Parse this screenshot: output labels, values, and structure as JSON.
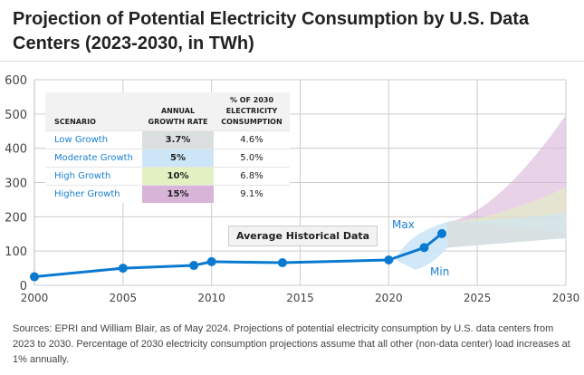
{
  "chart_data": {
    "type": "line",
    "title": "Projection of Potential Electricity Consumption by U.S. Data Centers (2023-2030, in TWh)",
    "xlim": [
      2000,
      2030
    ],
    "ylim": [
      0,
      600
    ],
    "xticks": [
      2000,
      2005,
      2010,
      2015,
      2020,
      2025,
      2030
    ],
    "yticks": [
      0,
      100,
      200,
      300,
      400,
      500,
      600
    ],
    "grid": true,
    "historical": {
      "label": "Average Historical Data",
      "color": "#0a7ad1",
      "x": [
        2000,
        2005,
        2009,
        2010,
        2014,
        2020,
        2022,
        2023
      ],
      "y": [
        25,
        50,
        58,
        69,
        66,
        74,
        110,
        151
      ]
    },
    "range_labels": {
      "max": "Max",
      "min": "Min"
    },
    "projections": {
      "start_year": 2023.3,
      "start_min": 110,
      "start_max": 185,
      "end_min_2030": 138,
      "scenarios": [
        {
          "name": "Higher Growth",
          "growth": "15%",
          "share_2030": "9.1%",
          "top_2030": 497,
          "color": "#d8b4d8"
        },
        {
          "name": "High Growth",
          "growth": "10%",
          "share_2030": "6.8%",
          "top_2030": 286,
          "color": "#e2f0c2"
        },
        {
          "name": "Moderate Growth",
          "growth": "5%",
          "share_2030": "5.0%",
          "top_2030": 212,
          "color": "#cce6f7"
        },
        {
          "name": "Low Growth",
          "growth": "3.7%",
          "share_2030": "4.6%",
          "top_2030": 150,
          "color": "#d9dcdd"
        }
      ]
    }
  },
  "table": {
    "headers": [
      "SCENARIO",
      "ANNUAL GROWTH RATE",
      "% OF 2030 ELECTRICITY CONSUMPTION"
    ],
    "rows": [
      {
        "name": "Low Growth",
        "rate": "3.7%",
        "share": "4.6%",
        "color": "#dcdfe0"
      },
      {
        "name": "Moderate Growth",
        "rate": "5%",
        "share": "5.0%",
        "color": "#cce6f7"
      },
      {
        "name": "High Growth",
        "rate": "10%",
        "share": "6.8%",
        "color": "#e2f0c2"
      },
      {
        "name": "Higher Growth",
        "rate": "15%",
        "share": "9.1%",
        "color": "#d8b4d8"
      }
    ]
  },
  "source": "Sources: EPRI and William Blair, as of May 2024. Projections of potential electricity consumption by U.S. data centers from 2023 to 2030. Percentage of 2030 electricity consumption projections assume that all other (non-data center) load increases at 1% annually."
}
